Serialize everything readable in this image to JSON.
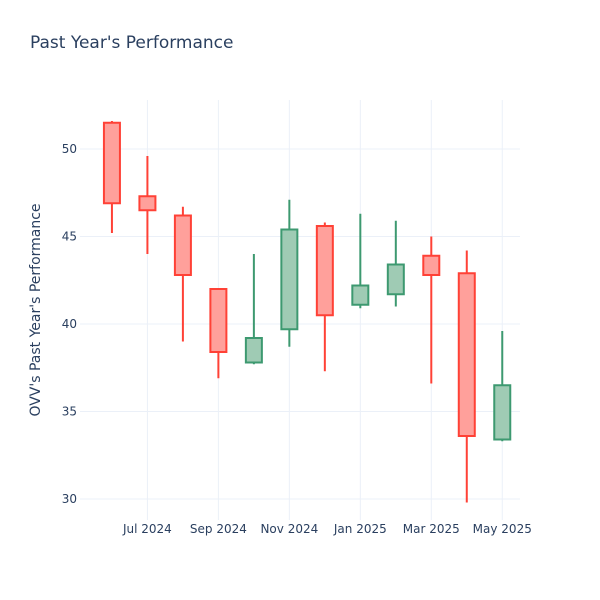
{
  "chart_data": {
    "type": "candlestick",
    "title": "Past Year's Performance",
    "xlabel": "",
    "ylabel": "OVV's Past Year's Performance",
    "ylim": [
      28.8,
      52.8
    ],
    "yticks": [
      30,
      35,
      40,
      45,
      50
    ],
    "xticks": [
      {
        "label": "Jul 2024",
        "x": 1
      },
      {
        "label": "Sep 2024",
        "x": 3
      },
      {
        "label": "Nov 2024",
        "x": 5
      },
      {
        "label": "Jan 2025",
        "x": 7
      },
      {
        "label": "Mar 2025",
        "x": 9
      },
      {
        "label": "May 2025",
        "x": 11
      }
    ],
    "xlim": [
      -0.9,
      11.5
    ],
    "grid": true,
    "increasing_color": "#3d9970",
    "increasing_fill": "#9fcbb4",
    "decreasing_color": "#ff4136",
    "decreasing_fill": "#ffa09b",
    "candles": [
      {
        "x": 0.0,
        "open": 51.5,
        "high": 51.6,
        "low": 45.2,
        "close": 46.9
      },
      {
        "x": 1.0,
        "open": 47.3,
        "high": 49.6,
        "low": 44.0,
        "close": 46.5
      },
      {
        "x": 2.0,
        "open": 46.2,
        "high": 46.7,
        "low": 39.0,
        "close": 42.8
      },
      {
        "x": 3.0,
        "open": 42.0,
        "high": 42.0,
        "low": 36.9,
        "close": 38.4
      },
      {
        "x": 4.0,
        "open": 37.8,
        "high": 44.0,
        "low": 37.7,
        "close": 39.2
      },
      {
        "x": 5.0,
        "open": 39.7,
        "high": 47.1,
        "low": 38.7,
        "close": 45.4
      },
      {
        "x": 6.0,
        "open": 45.6,
        "high": 45.8,
        "low": 37.3,
        "close": 40.5
      },
      {
        "x": 7.0,
        "open": 41.1,
        "high": 46.3,
        "low": 40.9,
        "close": 42.2
      },
      {
        "x": 8.0,
        "open": 41.7,
        "high": 45.9,
        "low": 41.0,
        "close": 43.4
      },
      {
        "x": 9.0,
        "open": 43.9,
        "high": 45.0,
        "low": 36.6,
        "close": 42.8
      },
      {
        "x": 10.0,
        "open": 42.9,
        "high": 44.2,
        "low": 29.8,
        "close": 33.6
      },
      {
        "x": 11.0,
        "open": 33.4,
        "high": 39.6,
        "low": 33.3,
        "close": 36.5
      }
    ]
  }
}
